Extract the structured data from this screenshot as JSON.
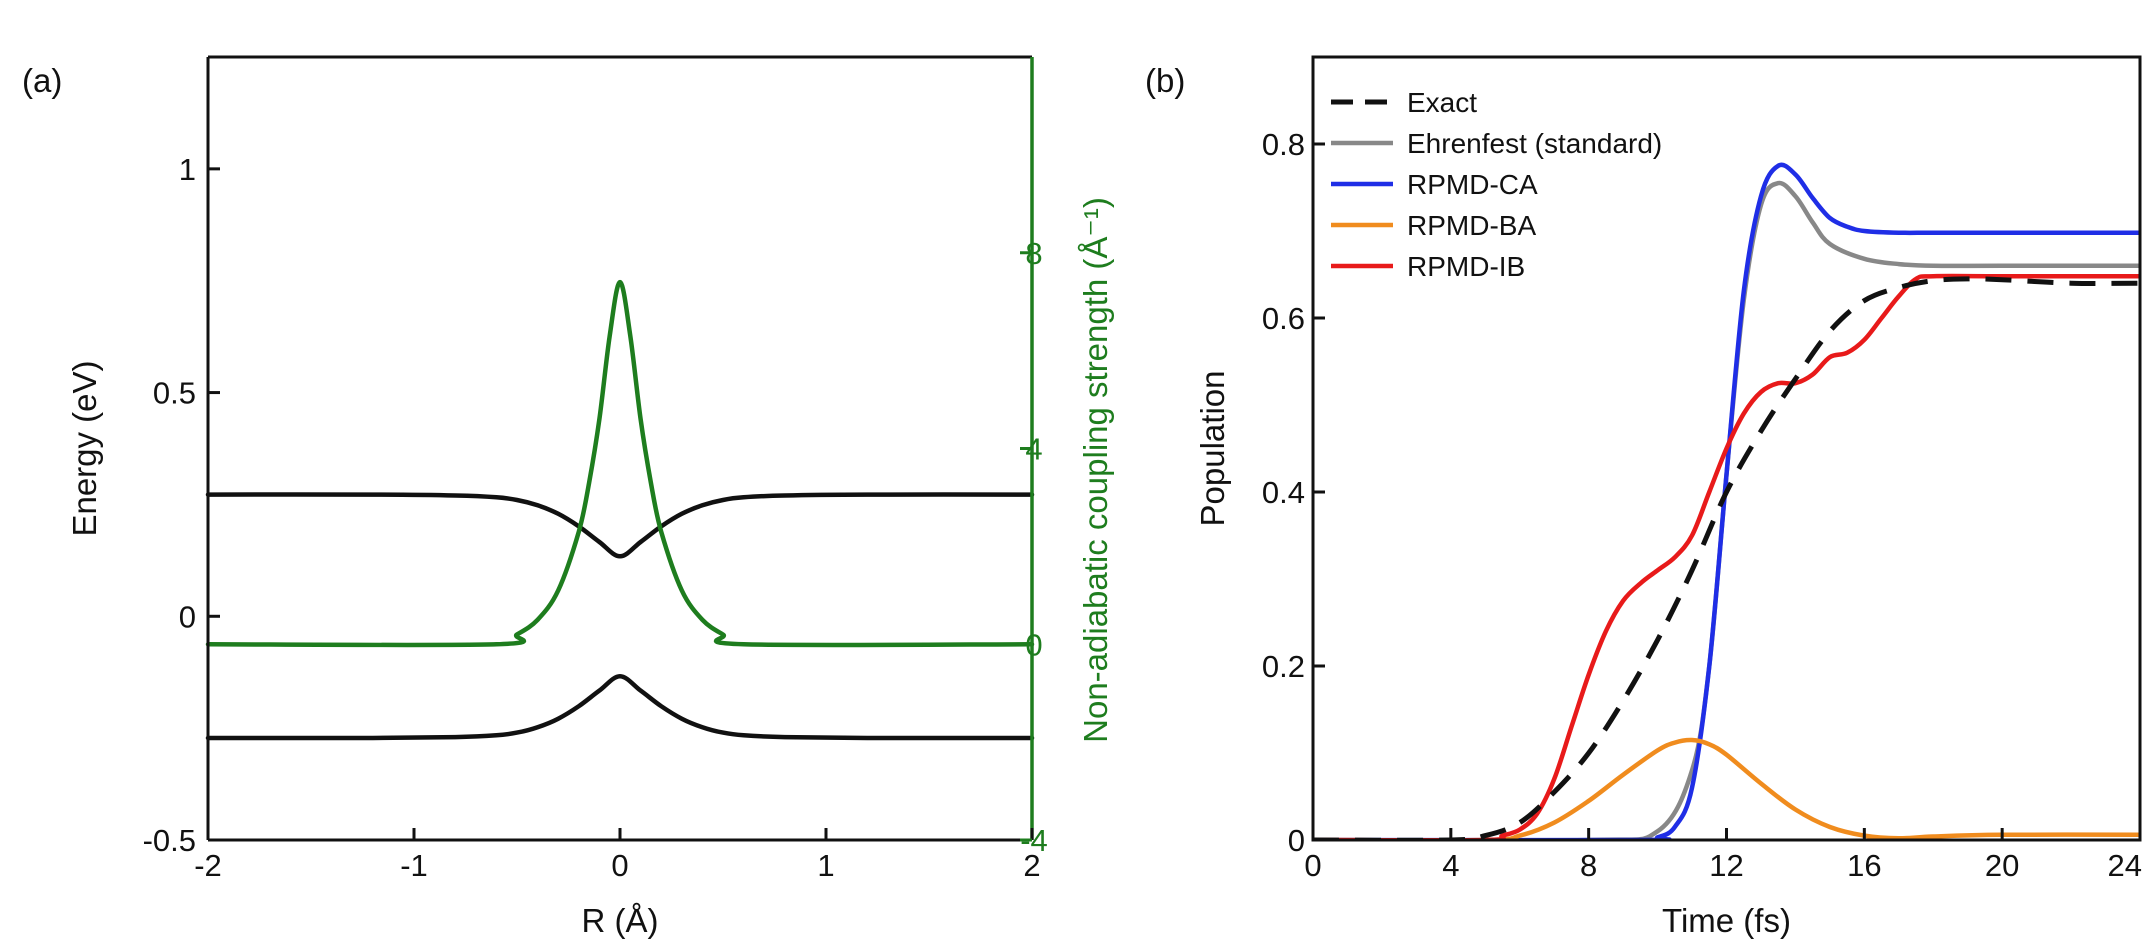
{
  "chart_data": [
    {
      "panel_label": "(a)",
      "type": "line",
      "xlabel": "R (Å)",
      "ylabel": "Energy (eV)",
      "y2label": "Non-adiabatic coupling strength (Å⁻¹)",
      "xlim": [
        -2,
        2
      ],
      "ylim": [
        -0.5,
        1.25
      ],
      "y2lim": [
        -4,
        12
      ],
      "xticks": [
        "-2",
        "-1",
        "0",
        "1",
        "2"
      ],
      "yticks": [
        "-0.5",
        "0",
        "0.5",
        "1"
      ],
      "y2ticks": [
        "-4",
        "0",
        "4",
        "8"
      ],
      "colors": {
        "energy": "#111111",
        "coupling": "#1e7d1e",
        "axis_right": "#1e7d1e"
      },
      "series": [
        {
          "axis": "left",
          "color": "#111111",
          "x": [
            -2,
            -1.2,
            -0.8,
            -0.6,
            -0.5,
            -0.4,
            -0.3,
            -0.2,
            -0.1,
            0,
            0.1,
            0.2,
            0.3,
            0.4,
            0.5,
            0.6,
            0.8,
            1.2,
            2
          ],
          "y": [
            0.272,
            0.272,
            0.27,
            0.266,
            0.26,
            0.248,
            0.229,
            0.201,
            0.166,
            0.134,
            0.166,
            0.201,
            0.229,
            0.248,
            0.26,
            0.266,
            0.27,
            0.272,
            0.272
          ]
        },
        {
          "axis": "left",
          "color": "#111111",
          "x": [
            -2,
            -1.2,
            -0.8,
            -0.6,
            -0.5,
            -0.4,
            -0.3,
            -0.2,
            -0.1,
            0,
            0.1,
            0.2,
            0.3,
            0.4,
            0.5,
            0.6,
            0.8,
            1.2,
            2
          ],
          "y": [
            -0.272,
            -0.272,
            -0.27,
            -0.266,
            -0.26,
            -0.248,
            -0.229,
            -0.201,
            -0.166,
            -0.134,
            -0.166,
            -0.201,
            -0.229,
            -0.248,
            -0.26,
            -0.266,
            -0.27,
            -0.272,
            -0.272
          ]
        },
        {
          "axis": "right",
          "color": "#1e7d1e",
          "x": [
            -2,
            -0.6,
            -0.5,
            -0.4,
            -0.3,
            -0.2,
            -0.15,
            -0.1,
            -0.05,
            0,
            0.05,
            0.1,
            0.15,
            0.2,
            0.3,
            0.4,
            0.5,
            0.6,
            2
          ],
          "y": [
            0,
            0,
            0.2,
            0.5,
            1.1,
            2.3,
            3.3,
            4.6,
            6.3,
            7.4,
            6.3,
            4.6,
            3.3,
            2.3,
            1.1,
            0.5,
            0.2,
            0,
            0
          ]
        }
      ]
    },
    {
      "panel_label": "(b)",
      "type": "line",
      "xlabel": "Time (fs)",
      "ylabel": "Population",
      "xlim": [
        0,
        24
      ],
      "ylim": [
        0,
        0.9
      ],
      "xticks": [
        "0",
        "4",
        "8",
        "12",
        "16",
        "20",
        "24"
      ],
      "yticks": [
        "0",
        "0.2",
        "0.4",
        "0.6",
        "0.8"
      ],
      "legend_position": "top-left",
      "series": [
        {
          "name": "Exact",
          "color": "#111111",
          "dashed": true,
          "x": [
            0,
            4,
            5,
            6,
            7,
            8,
            9,
            10,
            11,
            12,
            13,
            14,
            15,
            16,
            17,
            18,
            19,
            20,
            22,
            24
          ],
          "y": [
            0,
            0,
            0.005,
            0.02,
            0.055,
            0.1,
            0.16,
            0.23,
            0.31,
            0.4,
            0.47,
            0.53,
            0.585,
            0.62,
            0.635,
            0.643,
            0.645,
            0.644,
            0.64,
            0.64
          ]
        },
        {
          "name": "Ehrenfest (standard)",
          "color": "#888888",
          "x": [
            0,
            8,
            10,
            11,
            11.5,
            12,
            12.5,
            13,
            13.5,
            14,
            14.5,
            15,
            16,
            17,
            18,
            20,
            24
          ],
          "y": [
            0,
            0,
            0.01,
            0.08,
            0.2,
            0.42,
            0.62,
            0.73,
            0.755,
            0.74,
            0.71,
            0.685,
            0.668,
            0.662,
            0.66,
            0.66,
            0.66
          ]
        },
        {
          "name": "RPMD-CA",
          "color": "#1f2ee6",
          "x": [
            0,
            9.5,
            10,
            10.5,
            11,
            11.5,
            12,
            12.5,
            13,
            13.5,
            14,
            14.5,
            15,
            15.5,
            16,
            17,
            18,
            20,
            24
          ],
          "y": [
            0,
            0,
            0.003,
            0.015,
            0.06,
            0.2,
            0.42,
            0.63,
            0.74,
            0.775,
            0.765,
            0.738,
            0.715,
            0.705,
            0.7,
            0.698,
            0.698,
            0.698,
            0.698
          ]
        },
        {
          "name": "RPMD-BA",
          "color": "#f08c1e",
          "x": [
            0,
            5,
            6,
            7,
            8,
            9,
            10,
            10.5,
            11,
            11.5,
            12,
            13,
            14,
            15,
            16,
            17,
            18,
            20,
            24
          ],
          "y": [
            0,
            0,
            0.005,
            0.02,
            0.045,
            0.075,
            0.103,
            0.112,
            0.115,
            0.11,
            0.098,
            0.065,
            0.035,
            0.015,
            0.005,
            0.002,
            0.004,
            0.006,
            0.006
          ]
        },
        {
          "name": "RPMD-IB",
          "color": "#e81a1a",
          "x": [
            0,
            5,
            5.5,
            6,
            6.5,
            7,
            7.5,
            8,
            8.5,
            9,
            9.5,
            10,
            10.5,
            11,
            11.5,
            12,
            12.5,
            13,
            13.5,
            14,
            14.5,
            15,
            15.5,
            16,
            16.5,
            17,
            17.5,
            18,
            20,
            24
          ],
          "y": [
            0,
            0,
            0.005,
            0.012,
            0.03,
            0.07,
            0.13,
            0.19,
            0.24,
            0.275,
            0.295,
            0.31,
            0.325,
            0.35,
            0.4,
            0.45,
            0.49,
            0.515,
            0.525,
            0.525,
            0.535,
            0.555,
            0.56,
            0.575,
            0.6,
            0.625,
            0.645,
            0.648,
            0.648,
            0.648
          ]
        }
      ]
    }
  ]
}
